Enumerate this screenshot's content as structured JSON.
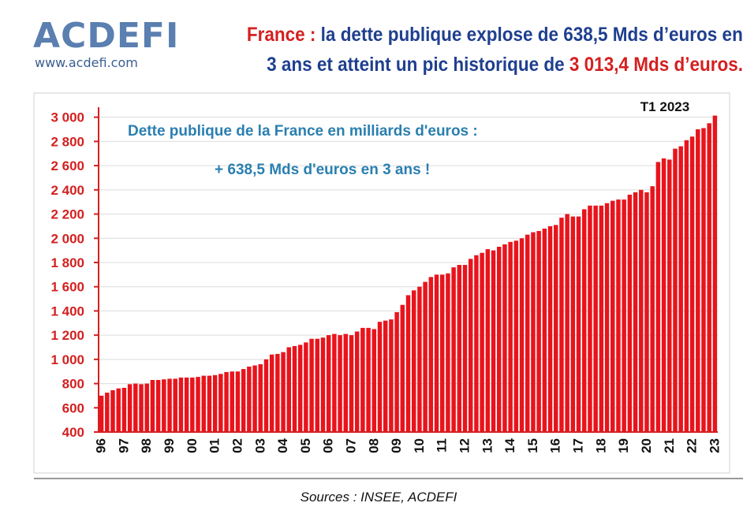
{
  "header": {
    "logo": "ACDEFI",
    "website": "www.acdefi.com",
    "title_line1": [
      {
        "text": "France :",
        "color": "#d42020"
      },
      {
        "text": " la dette publique explose de 638,5 Mds d’euros en",
        "color": "#1f3f8f"
      }
    ],
    "title_line2": [
      {
        "text": "3 ans et atteint un pic historique de ",
        "color": "#1f3f8f"
      },
      {
        "text": "3 013,4 Mds d’euros.",
        "color": "#d42020"
      }
    ]
  },
  "chart_data": {
    "type": "bar",
    "color": "#e8141c",
    "annotations": [
      "Dette publique de la France en milliards d'euros :",
      "+ 638,5 Mds d'euros en 3 ans !",
      "T1 2023"
    ],
    "categories": [
      "96",
      null,
      null,
      null,
      "97",
      null,
      null,
      null,
      "98",
      null,
      null,
      null,
      "99",
      null,
      null,
      null,
      "00",
      null,
      null,
      null,
      "01",
      null,
      null,
      null,
      "02",
      null,
      null,
      null,
      "03",
      null,
      null,
      null,
      "04",
      null,
      null,
      null,
      "05",
      null,
      null,
      null,
      "06",
      null,
      null,
      null,
      "07",
      null,
      null,
      null,
      "08",
      null,
      null,
      null,
      "09",
      null,
      null,
      null,
      "10",
      null,
      null,
      null,
      "11",
      null,
      null,
      null,
      "12",
      null,
      null,
      null,
      "13",
      null,
      null,
      null,
      "14",
      null,
      null,
      null,
      "15",
      null,
      null,
      null,
      "16",
      null,
      null,
      null,
      "17",
      null,
      null,
      null,
      "18",
      null,
      null,
      null,
      "19",
      null,
      null,
      null,
      "20",
      null,
      null,
      null,
      "21",
      null,
      null,
      null,
      "22",
      null,
      null,
      null,
      "23"
    ],
    "values": [
      700,
      725,
      745,
      760,
      765,
      795,
      800,
      795,
      800,
      830,
      830,
      835,
      840,
      840,
      850,
      850,
      850,
      855,
      865,
      865,
      870,
      880,
      895,
      900,
      900,
      920,
      940,
      950,
      960,
      1000,
      1040,
      1045,
      1060,
      1100,
      1110,
      1120,
      1140,
      1170,
      1170,
      1180,
      1200,
      1210,
      1200,
      1210,
      1200,
      1230,
      1260,
      1260,
      1250,
      1310,
      1320,
      1330,
      1390,
      1450,
      1530,
      1570,
      1600,
      1640,
      1680,
      1700,
      1700,
      1710,
      1760,
      1780,
      1780,
      1830,
      1860,
      1880,
      1910,
      1900,
      1930,
      1950,
      1970,
      1980,
      2000,
      2030,
      2050,
      2060,
      2080,
      2100,
      2110,
      2170,
      2200,
      2180,
      2180,
      2240,
      2270,
      2270,
      2270,
      2290,
      2310,
      2320,
      2320,
      2360,
      2380,
      2400,
      2380,
      2430,
      2630,
      2660,
      2650,
      2740,
      2760,
      2810,
      2840,
      2900,
      2910,
      2950,
      3013.4
    ],
    "ylim": [
      400,
      3050
    ],
    "yticks": [
      400,
      600,
      800,
      {
        "value": 1000,
        "label": "1 000"
      },
      {
        "value": 1200,
        "label": "1 200"
      },
      {
        "value": 1400,
        "label": "1 400"
      },
      {
        "value": 1600,
        "label": "1 600"
      },
      {
        "value": 1800,
        "label": "1 800"
      },
      {
        "value": 2000,
        "label": "2 000"
      },
      {
        "value": 2200,
        "label": "2 200"
      },
      {
        "value": 2400,
        "label": "2 400"
      },
      {
        "value": 2600,
        "label": "2 600"
      },
      {
        "value": 2800,
        "label": "2 800"
      },
      {
        "value": 3000,
        "label": "3 000"
      }
    ],
    "grid": true,
    "source": "Sources : INSEE, ACDEFI"
  }
}
